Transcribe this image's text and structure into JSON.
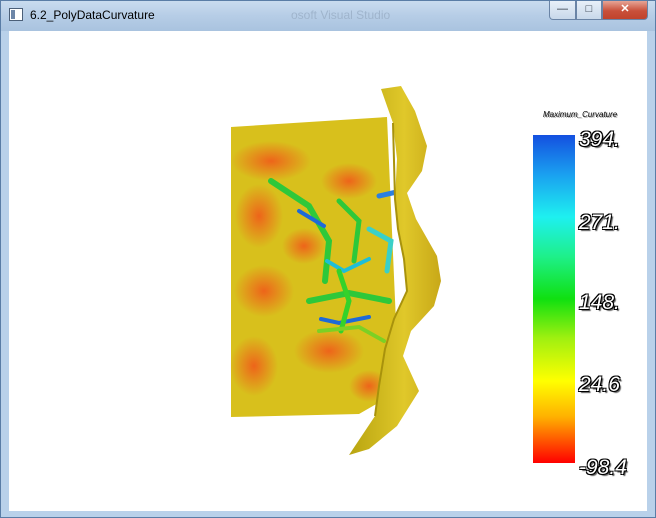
{
  "window": {
    "title": "6.2_PolyDataCurvature",
    "background_title": "osoft Visual Studio",
    "controls": {
      "minimize": "—",
      "maximize": "□",
      "close": "✕"
    }
  },
  "scalar_bar": {
    "title": "Maximum_Curvature",
    "labels": [
      "394.",
      "271.",
      "148.",
      "24.6",
      "-98.4"
    ],
    "range": [
      -98.4,
      394
    ]
  },
  "colors": {
    "accent": "#b6cde6",
    "surface_base": "#d8c21a",
    "close_button": "#c9503a"
  }
}
